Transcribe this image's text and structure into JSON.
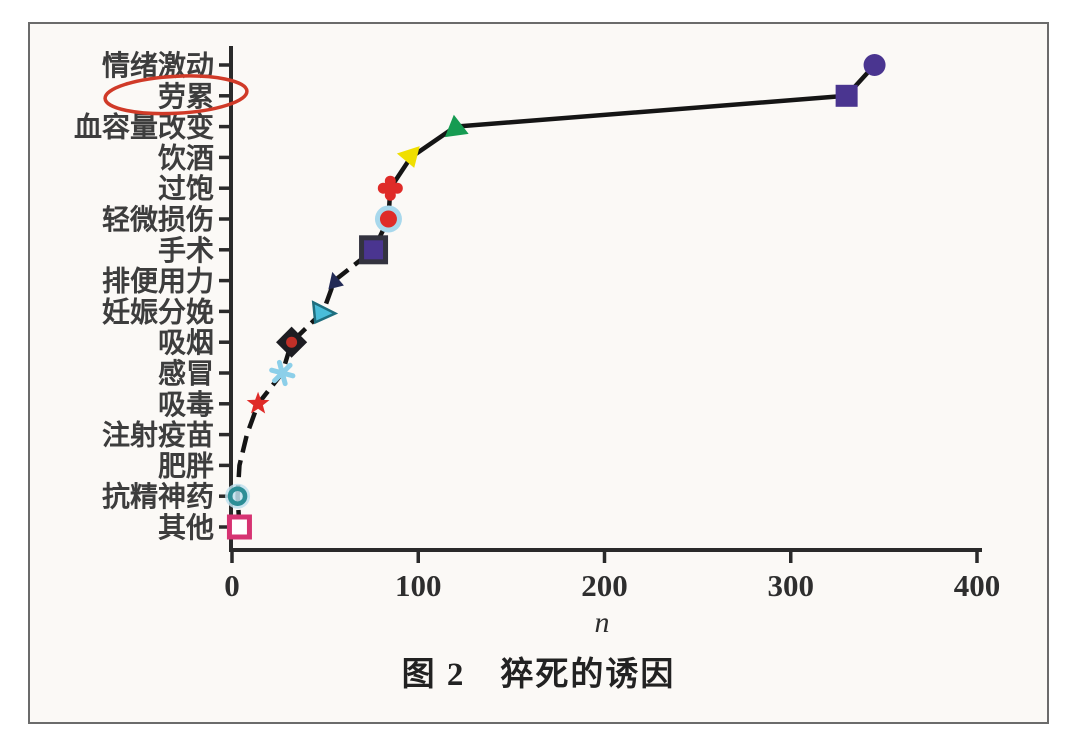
{
  "caption": "图 2　猝死的诱因",
  "chart_data": {
    "type": "scatter",
    "title": "图 2 猝死的诱因",
    "xlabel": "n",
    "x_ticks": [
      0,
      100,
      200,
      300,
      400
    ],
    "xlim": [
      0,
      400
    ],
    "legend": "none",
    "grid": false,
    "line": {
      "color": "#151515",
      "style": "dashed lower half, solid upper half"
    },
    "annotation": {
      "shape": "hand-drawn-red-ellipse",
      "target_label": "劳累",
      "color": "#d03a28"
    },
    "points": [
      {
        "label": "情绪激动",
        "n": 345,
        "marker": "circle",
        "color": "#4a3590"
      },
      {
        "label": "劳累",
        "n": 330,
        "marker": "square",
        "color": "#4a3590",
        "annotated": true
      },
      {
        "label": "血容量改变",
        "n": 120,
        "marker": "triangle-up",
        "color": "#169b52"
      },
      {
        "label": "饮酒",
        "n": 96,
        "marker": "triangle-down",
        "color": "#f0df00"
      },
      {
        "label": "过饱",
        "n": 85,
        "marker": "cross-clover",
        "color": "#df2b28"
      },
      {
        "label": "轻微损伤",
        "n": 84,
        "marker": "circle-halo",
        "color": "#df2b28",
        "halo_color": "#a8d8ec"
      },
      {
        "label": "手术",
        "n": 76,
        "marker": "square-bordered",
        "color": "#4a3590",
        "border_color": "#33333f"
      },
      {
        "label": "排便用力",
        "n": 55,
        "marker": "triangle-small",
        "color": "#232b56"
      },
      {
        "label": "妊娠分娩",
        "n": 49,
        "marker": "triangle-right",
        "color": "#49bdd9",
        "border_color": "#1e6e7e"
      },
      {
        "label": "吸烟",
        "n": 32,
        "marker": "diamond-dot",
        "color": "#1d1d22",
        "dot_color": "#c03028"
      },
      {
        "label": "感冒",
        "n": 27,
        "marker": "asterisk",
        "color": "#8ccfe9"
      },
      {
        "label": "吸毒",
        "n": 14,
        "marker": "star",
        "color": "#df2b28"
      },
      {
        "label": "注射疫苗",
        "n": 8,
        "marker": "none",
        "color": "#1d1d22"
      },
      {
        "label": "肥胖",
        "n": 4,
        "marker": "none",
        "color": "#1d1d22"
      },
      {
        "label": "抗精神药",
        "n": 3,
        "marker": "ring",
        "color": "#2c8e96",
        "halo_color": "#bfe2ee"
      },
      {
        "label": "其他",
        "n": 4,
        "marker": "square-open",
        "color": "#d63372"
      }
    ],
    "colors": {
      "axis": "#2a2a2a",
      "label_text": "#3d3d3d",
      "tick_text": "#2e2e2e",
      "line": "#151515",
      "annotation_ellipse": "#d03a28",
      "background": "#fbf9f6"
    }
  }
}
